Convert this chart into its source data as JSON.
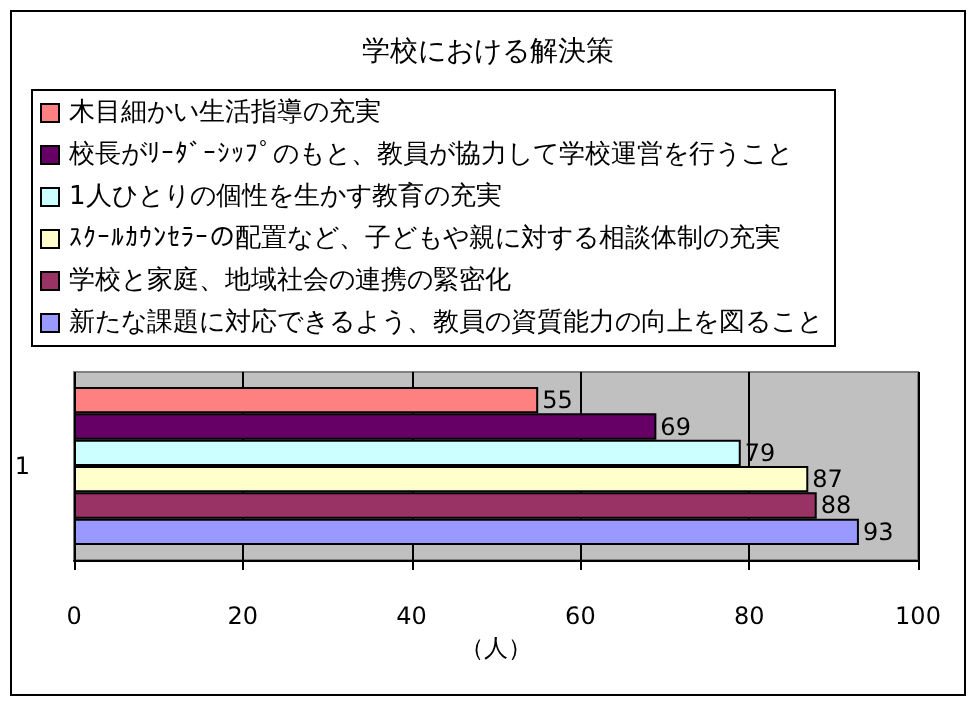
{
  "chart_data": {
    "type": "bar",
    "orientation": "horizontal",
    "title": "学校における解決策",
    "xlabel": "（人）",
    "categories": [
      "1"
    ],
    "series": [
      {
        "name": "木目細かい生活指導の充実",
        "color": "#ff8080",
        "values": [
          55
        ]
      },
      {
        "name": "校長がﾘｰﾀﾞｰｼｯﾌﾟのもと、教員が協力して学校運営を行うこと",
        "color": "#660066",
        "values": [
          69
        ]
      },
      {
        "name": "1人ひとりの個性を生かす教育の充実",
        "color": "#ccffff",
        "values": [
          79
        ]
      },
      {
        "name": "ｽｸｰﾙｶｳﾝｾﾗｰの配置など、子どもや親に対する相談体制の充実",
        "color": "#ffffcc",
        "values": [
          87
        ]
      },
      {
        "name": "学校と家庭、地域社会の連携の緊密化",
        "color": "#993366",
        "values": [
          88
        ]
      },
      {
        "name": "新たな課題に対応できるよう、教員の資質能力の向上を図ること",
        "color": "#9999ff",
        "values": [
          93
        ]
      }
    ],
    "xlim": [
      0,
      100
    ],
    "xticks": [
      0,
      20,
      40,
      60,
      80,
      100
    ],
    "grid": "x",
    "legend": "top",
    "data_labels": true
  }
}
